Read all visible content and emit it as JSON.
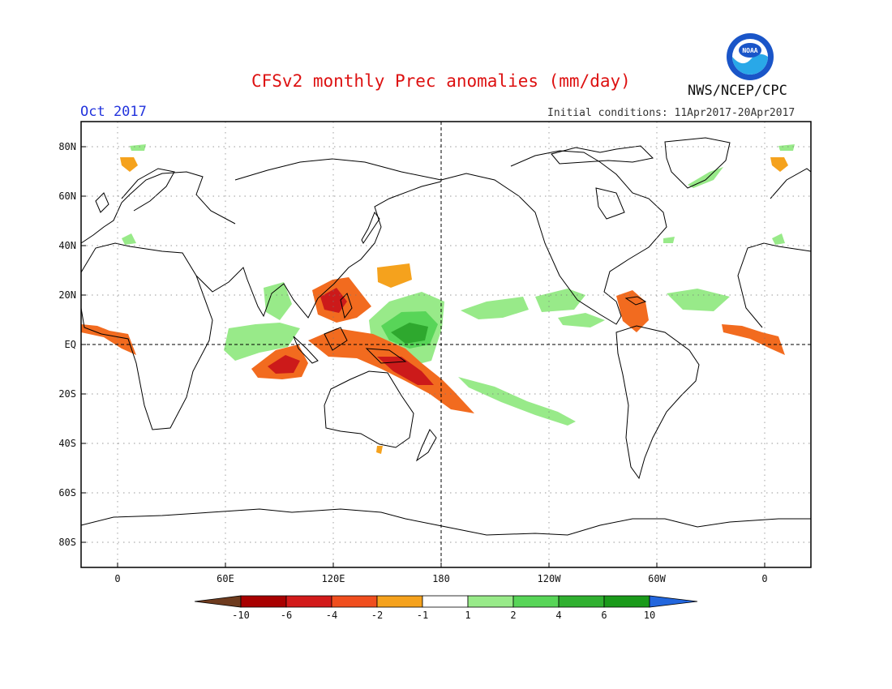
{
  "title": "CFSv2 monthly Prec anomalies (mm/day)",
  "month": "Oct 2017",
  "initial_conditions": "Initial conditions: 11Apr2017-20Apr2017",
  "agency": "NWS/NCEP/CPC",
  "logo_text": "NOAA",
  "lat_labels": [
    "80N",
    "60N",
    "40N",
    "20N",
    "EQ",
    "20S",
    "40S",
    "60S",
    "80S"
  ],
  "lon_labels": [
    "0",
    "60E",
    "120E",
    "180",
    "120W",
    "60W",
    "0"
  ],
  "colorbar": {
    "labels": [
      "-10",
      "-6",
      "-4",
      "-2",
      "-1",
      "1",
      "2",
      "4",
      "6",
      "10"
    ],
    "colors": [
      "#6e3b1e",
      "#a80000",
      "#d21a1a",
      "#f04e1e",
      "#f5a21d",
      "#ffffff",
      "#98ea89",
      "#58d558",
      "#30b030",
      "#1a9a1a",
      "#2266dd"
    ]
  },
  "colors": {
    "title": "#dd1111",
    "month": "#2233dd",
    "dry_strong": "#cc1a1a",
    "dry": "#f26b1f",
    "dry_weak": "#f5a21d",
    "wet_weak": "#98ea89",
    "wet": "#58d558",
    "wet_strong": "#2ea82e"
  }
}
